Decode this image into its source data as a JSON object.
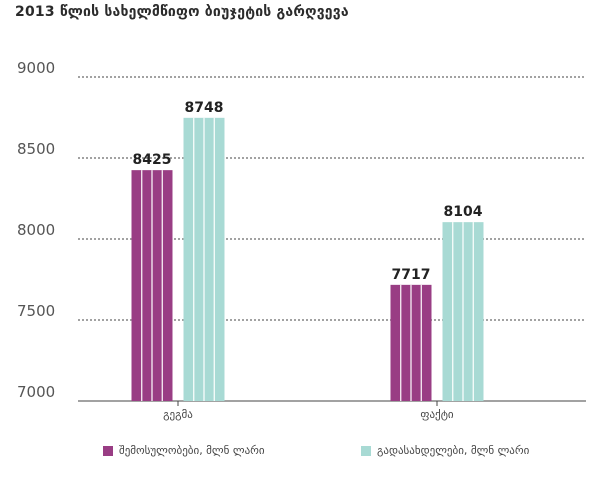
{
  "colors": {
    "revenue": "#993d84",
    "expenditure": "#a8dad4",
    "grid": "#444444"
  },
  "chart_data": {
    "type": "bar",
    "title": "2013 წლის სახელმწიფო ბიუჯეტის გარღვევა",
    "categories": [
      "გეგმა",
      "ფაქტი"
    ],
    "series": [
      {
        "name": "შემოსულობები, მლნ ლარი",
        "values": [
          8425,
          7717
        ]
      },
      {
        "name": "გადასახდელები, მლნ ლარი",
        "values": [
          8748,
          8104
        ]
      }
    ],
    "ylim": [
      7000,
      9000
    ],
    "yticks": [
      9000,
      8500,
      8000,
      7500,
      7000
    ],
    "grid": true,
    "legend_position": "bottom"
  }
}
